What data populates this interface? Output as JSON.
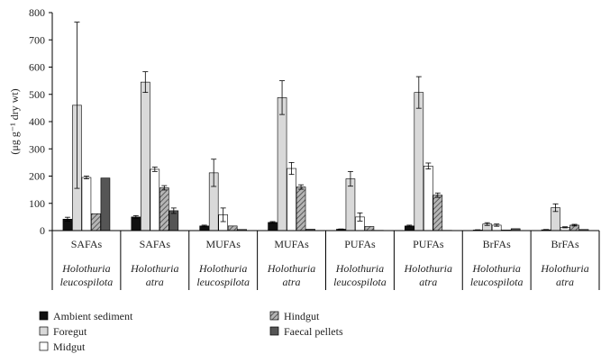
{
  "chart_data": {
    "type": "bar",
    "ylabel": "(μg g⁻¹ dry wt)",
    "ylim": [
      0,
      800
    ],
    "yticks": [
      0,
      100,
      200,
      300,
      400,
      500,
      600,
      700,
      800
    ],
    "grid": false,
    "legend_position": "bottom",
    "categories": [
      {
        "label": "SAFAs",
        "species_line1": "Holothuria",
        "species_line2": "leucospilota"
      },
      {
        "label": "SAFAs",
        "species_line1": "Holothuria",
        "species_line2": "atra"
      },
      {
        "label": "MUFAs",
        "species_line1": "Holothuria",
        "species_line2": "leucospilota"
      },
      {
        "label": "MUFAs",
        "species_line1": "Holothuria",
        "species_line2": "atra"
      },
      {
        "label": "PUFAs",
        "species_line1": "Holothuria",
        "species_line2": "leucospilota"
      },
      {
        "label": "PUFAs",
        "species_line1": "Holothuria",
        "species_line2": "atra"
      },
      {
        "label": "BrFAs",
        "species_line1": "Holothuria",
        "species_line2": "leucospilota"
      },
      {
        "label": "BrFAs",
        "species_line1": "Holothuria",
        "species_line2": "atra"
      }
    ],
    "series": [
      {
        "name": "Ambient sediment",
        "color": "#111111",
        "pattern": "solid",
        "values": [
          42,
          50,
          17,
          30,
          5,
          17,
          2,
          3
        ],
        "errors": [
          7,
          5,
          3,
          3,
          1,
          3,
          1,
          1
        ]
      },
      {
        "name": "Foregut",
        "color": "#d9d9d9",
        "pattern": "solid",
        "values": [
          460,
          545,
          212,
          488,
          190,
          507,
          24,
          84
        ],
        "errors": [
          305,
          38,
          50,
          62,
          27,
          58,
          5,
          14
        ]
      },
      {
        "name": "Midgut",
        "color": "#ffffff",
        "pattern": "solid",
        "values": [
          195,
          225,
          58,
          228,
          50,
          237,
          20,
          12
        ],
        "errors": [
          5,
          8,
          25,
          22,
          15,
          11,
          4,
          2
        ]
      },
      {
        "name": "Hindgut",
        "color": "#9a9a9a",
        "pattern": "hatch",
        "values": [
          62,
          157,
          17,
          160,
          15,
          130,
          2,
          20
        ],
        "errors": [
          0,
          8,
          0,
          8,
          0,
          8,
          0,
          3
        ]
      },
      {
        "name": "Faecal pellets",
        "color": "#555555",
        "pattern": "solid",
        "values": [
          193,
          73,
          4,
          5,
          1,
          1,
          7,
          4
        ],
        "errors": [
          0,
          10,
          0,
          0,
          0,
          0,
          0,
          0
        ]
      }
    ]
  }
}
